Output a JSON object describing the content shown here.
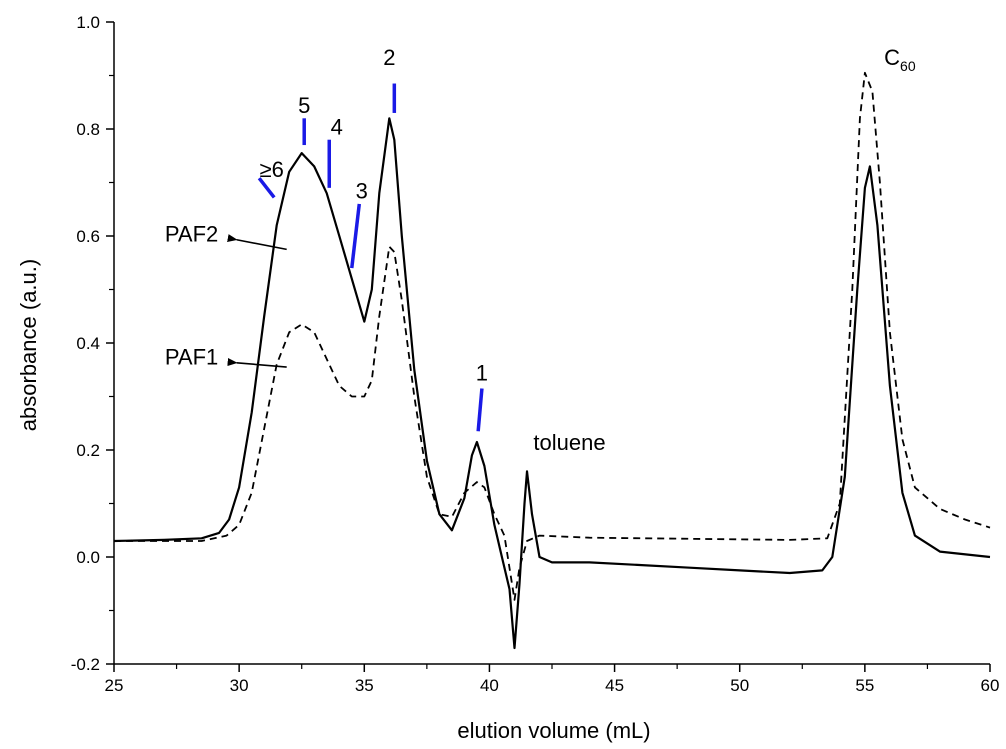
{
  "chart_data": {
    "type": "line",
    "xlabel": "elution volume (mL)",
    "ylabel": "absorbance (a.u.)",
    "xlim": [
      25,
      60
    ],
    "ylim": [
      -0.2,
      1.0
    ],
    "xticks": [
      25,
      30,
      35,
      40,
      45,
      50,
      55,
      60
    ],
    "yticks": [
      -0.2,
      0.0,
      0.2,
      0.4,
      0.6,
      0.8,
      1.0
    ],
    "xtick_labels": [
      "25",
      "30",
      "35",
      "40",
      "45",
      "50",
      "55",
      "60"
    ],
    "ytick_labels": [
      "-0.2",
      "0.0",
      "0.2",
      "0.4",
      "0.6",
      "0.8",
      "1.0"
    ],
    "series": [
      {
        "name": "PAF2",
        "style": "solid",
        "color": "#000000",
        "x": [
          25,
          27,
          28.5,
          29.2,
          29.6,
          30,
          30.5,
          31,
          31.5,
          32,
          32.5,
          33,
          33.5,
          34,
          34.5,
          35,
          35.3,
          35.6,
          36.0,
          36.2,
          36.5,
          37,
          37.5,
          38,
          38.5,
          39,
          39.3,
          39.5,
          39.8,
          40.2,
          40.5,
          40.8,
          41.0,
          41.2,
          41.4,
          41.5,
          41.7,
          42,
          42.5,
          44,
          46,
          48,
          50,
          52,
          53.3,
          53.7,
          54.2,
          54.7,
          55.0,
          55.2,
          55.5,
          56,
          56.5,
          57,
          58,
          60
        ],
        "y": [
          0.03,
          0.032,
          0.035,
          0.045,
          0.07,
          0.13,
          0.27,
          0.45,
          0.62,
          0.72,
          0.755,
          0.73,
          0.68,
          0.6,
          0.52,
          0.44,
          0.5,
          0.68,
          0.82,
          0.78,
          0.6,
          0.35,
          0.18,
          0.08,
          0.05,
          0.11,
          0.19,
          0.215,
          0.17,
          0.06,
          0.0,
          -0.06,
          -0.17,
          -0.05,
          0.1,
          0.16,
          0.08,
          0.0,
          -0.01,
          -0.01,
          -0.015,
          -0.02,
          -0.025,
          -0.03,
          -0.025,
          0.0,
          0.15,
          0.5,
          0.69,
          0.73,
          0.62,
          0.32,
          0.12,
          0.04,
          0.01,
          0.0
        ]
      },
      {
        "name": "PAF1",
        "style": "dashed",
        "color": "#000000",
        "x": [
          25,
          28.5,
          29.5,
          30,
          30.5,
          31,
          31.5,
          32,
          32.5,
          33,
          33.5,
          34,
          34.5,
          35,
          35.3,
          35.6,
          36.0,
          36.2,
          36.5,
          37,
          37.5,
          38,
          38.5,
          39,
          39.5,
          39.8,
          40.2,
          40.6,
          40.9,
          41.0,
          41.2,
          41.5,
          42,
          44,
          48,
          52,
          53.5,
          54.0,
          54.5,
          54.8,
          55.0,
          55.3,
          55.6,
          56,
          56.5,
          57,
          58,
          59,
          60
        ],
        "y": [
          0.03,
          0.03,
          0.04,
          0.06,
          0.12,
          0.24,
          0.36,
          0.42,
          0.435,
          0.42,
          0.37,
          0.32,
          0.3,
          0.3,
          0.33,
          0.45,
          0.58,
          0.57,
          0.48,
          0.3,
          0.15,
          0.08,
          0.075,
          0.12,
          0.14,
          0.13,
          0.08,
          0.04,
          -0.05,
          -0.08,
          -0.02,
          0.03,
          0.04,
          0.036,
          0.034,
          0.032,
          0.035,
          0.1,
          0.5,
          0.82,
          0.905,
          0.87,
          0.7,
          0.42,
          0.22,
          0.13,
          0.09,
          0.07,
          0.055
        ]
      }
    ],
    "annotations": {
      "peak_labels": [
        {
          "text": "≥6",
          "x": 31.3,
          "y": 0.71,
          "marker_x1": 30.8,
          "marker_y1": 0.708,
          "marker_x2": 31.4,
          "marker_y2": 0.672
        },
        {
          "text": "5",
          "x": 32.6,
          "y": 0.83,
          "marker_x1": 32.6,
          "marker_y1": 0.82,
          "marker_x2": 32.6,
          "marker_y2": 0.77
        },
        {
          "text": "4",
          "x": 33.9,
          "y": 0.79,
          "marker_x1": 33.6,
          "marker_y1": 0.78,
          "marker_x2": 33.6,
          "marker_y2": 0.69
        },
        {
          "text": "3",
          "x": 34.9,
          "y": 0.67,
          "marker_x1": 34.8,
          "marker_y1": 0.66,
          "marker_x2": 34.5,
          "marker_y2": 0.54
        },
        {
          "text": "2",
          "x": 36.0,
          "y": 0.92,
          "marker_x1": 36.2,
          "marker_y1": 0.885,
          "marker_x2": 36.2,
          "marker_y2": 0.83
        },
        {
          "text": "1",
          "x": 39.7,
          "y": 0.33,
          "marker_x1": 39.7,
          "marker_y1": 0.315,
          "marker_x2": 39.55,
          "marker_y2": 0.235
        }
      ],
      "marker_color": "#1a1ae6",
      "toluene": {
        "text": "toluene",
        "x": 43.2,
        "y": 0.2
      },
      "c60": {
        "base": "C",
        "sub": "60",
        "x": 56.4,
        "y": 0.92
      },
      "paf2": {
        "text": "PAF2",
        "x": 28.1,
        "y": 0.59,
        "arrow_from": [
          29.9,
          0.593
        ],
        "arrow_to": [
          31.9,
          0.575
        ]
      },
      "paf1": {
        "text": "PAF1",
        "x": 28.1,
        "y": 0.36,
        "arrow_from": [
          29.9,
          0.363
        ],
        "arrow_to": [
          31.9,
          0.355
        ]
      }
    }
  }
}
